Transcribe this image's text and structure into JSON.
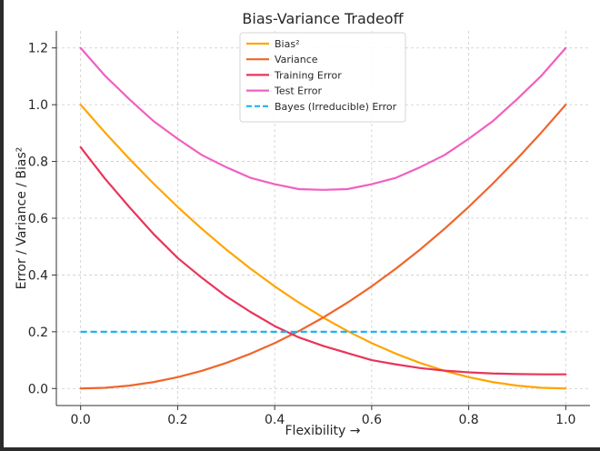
{
  "chart_data": {
    "type": "line",
    "title": "Bias-Variance Tradeoff",
    "xlabel": "Flexibility →",
    "ylabel": "Error / Variance / Bias²",
    "xlim": [
      -0.05,
      1.05
    ],
    "ylim": [
      -0.06,
      1.26
    ],
    "xticks": [
      "0.0",
      "0.2",
      "0.4",
      "0.6",
      "0.8",
      "1.0"
    ],
    "yticks": [
      "0.0",
      "0.2",
      "0.4",
      "0.6",
      "0.8",
      "1.0",
      "1.2"
    ],
    "grid": true,
    "legend_position": "top-center",
    "x": [
      0.0,
      0.05,
      0.1,
      0.15,
      0.2,
      0.25,
      0.3,
      0.35,
      0.4,
      0.45,
      0.5,
      0.55,
      0.6,
      0.65,
      0.7,
      0.75,
      0.8,
      0.85,
      0.9,
      0.95,
      1.0
    ],
    "series": [
      {
        "name": "Bias²",
        "color": "#FFA500",
        "style": "solid",
        "values": [
          1.0,
          0.9025,
          0.81,
          0.7225,
          0.64,
          0.5625,
          0.49,
          0.4225,
          0.36,
          0.3025,
          0.25,
          0.2025,
          0.16,
          0.1225,
          0.09,
          0.0625,
          0.04,
          0.0225,
          0.01,
          0.0025,
          0.0
        ]
      },
      {
        "name": "Variance",
        "color": "#F0652A",
        "style": "solid",
        "values": [
          0.0,
          0.0025,
          0.01,
          0.0225,
          0.04,
          0.0625,
          0.09,
          0.1225,
          0.16,
          0.2025,
          0.25,
          0.3025,
          0.36,
          0.4225,
          0.49,
          0.5625,
          0.64,
          0.7225,
          0.81,
          0.9025,
          1.0
        ]
      },
      {
        "name": "Training Error",
        "color": "#E8355A",
        "style": "solid",
        "values": [
          0.85,
          0.74,
          0.64,
          0.545,
          0.46,
          0.39,
          0.325,
          0.27,
          0.22,
          0.18,
          0.15,
          0.125,
          0.1,
          0.085,
          0.072,
          0.063,
          0.057,
          0.053,
          0.051,
          0.05,
          0.05
        ]
      },
      {
        "name": "Test Error",
        "color": "#F060C0",
        "style": "solid",
        "values": [
          1.2,
          1.1025,
          1.02,
          0.9425,
          0.88,
          0.8225,
          0.78,
          0.7425,
          0.72,
          0.7025,
          0.7,
          0.7025,
          0.72,
          0.7425,
          0.78,
          0.8225,
          0.88,
          0.9425,
          1.02,
          1.1025,
          1.2
        ]
      },
      {
        "name": "Bayes (Irreducible) Error",
        "color": "#1EB4F0",
        "style": "dashed",
        "values": [
          0.2,
          0.2,
          0.2,
          0.2,
          0.2,
          0.2,
          0.2,
          0.2,
          0.2,
          0.2,
          0.2,
          0.2,
          0.2,
          0.2,
          0.2,
          0.2,
          0.2,
          0.2,
          0.2,
          0.2,
          0.2
        ]
      }
    ]
  }
}
